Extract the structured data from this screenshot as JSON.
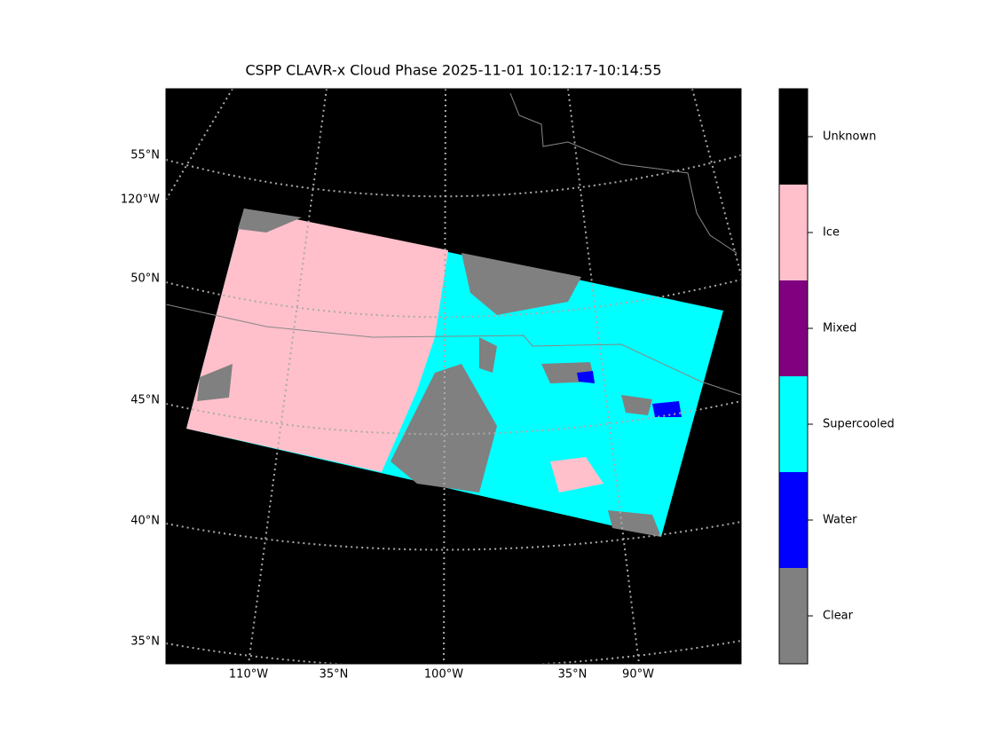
{
  "title": "CSPP CLAVR-x Cloud Phase 2025-11-01 10:12:17-10:14:55",
  "lat_labels": [
    "55°N",
    "120°W",
    "50°N",
    "45°N",
    "40°N",
    "35°N"
  ],
  "lon_labels": [
    "110°W",
    "35°N",
    "100°W",
    "35°N",
    "90°W"
  ],
  "colorbar": [
    {
      "label": "Clear",
      "color": "#808080"
    },
    {
      "label": "Water",
      "color": "#0000ff"
    },
    {
      "label": "Supercooled",
      "color": "#00ffff"
    },
    {
      "label": "Mixed",
      "color": "#800080"
    },
    {
      "label": "Ice",
      "color": "#ffc0cb"
    },
    {
      "label": "Unknown",
      "color": "#000000"
    }
  ]
}
